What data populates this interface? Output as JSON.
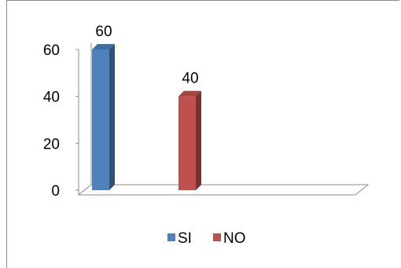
{
  "chart_data": {
    "type": "bar",
    "categories": [
      ""
    ],
    "series": [
      {
        "name": "SI",
        "values": [
          60
        ],
        "color": "#4f81bd"
      },
      {
        "name": "NO",
        "values": [
          40
        ],
        "color": "#c0504d"
      }
    ],
    "title": "",
    "xlabel": "",
    "ylabel": "",
    "ylim": [
      0,
      60
    ],
    "yticks": [
      0,
      20,
      40,
      60
    ],
    "grid": false,
    "legend_position": "bottom",
    "data_labels": true,
    "style": "3d-clustered-column"
  }
}
